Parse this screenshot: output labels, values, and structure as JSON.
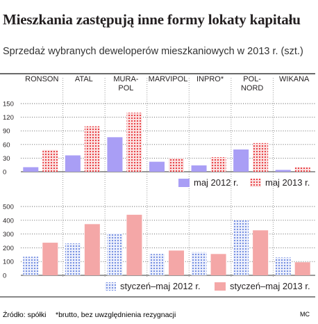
{
  "title": "Mieszkania zastępują inne formy lokaty kapitału",
  "subtitle": "Sprzedaż wybranych deweloperów mieszkaniowych w 2013 r. (szt.)",
  "source": "Źródło: spółki",
  "note": "*brutto, bez uwzględnienia rezygnacji",
  "credit": "MC",
  "colors": {
    "maj_2012": "#a99ef5",
    "maj_2013": "#e8383e",
    "sty_2012": "#8fa3e8",
    "sty_2013": "#f4a7a7",
    "frame": "#111111",
    "gridline": "#555555"
  },
  "chart_data": [
    {
      "type": "bar",
      "categories": [
        "RONSON",
        "ATAL",
        "MURA-POL",
        "MARVIPOL",
        "INPRO*",
        "POL-NORD",
        "WIKANA"
      ],
      "series": [
        {
          "name": "maj 2012 r.",
          "values": [
            10,
            36,
            76,
            22,
            14,
            49,
            4
          ]
        },
        {
          "name": "maj 2013 r.",
          "values": [
            48,
            100,
            130,
            30,
            32,
            63,
            10
          ]
        }
      ],
      "ylim": [
        0,
        150
      ],
      "yticks": [
        0,
        30,
        60,
        90,
        120,
        150
      ],
      "grid": true,
      "legend": "bottom-right"
    },
    {
      "type": "bar",
      "categories": [
        "RONSON",
        "ATAL",
        "MURA-POL",
        "MARVIPOL",
        "INPRO*",
        "POL-NORD",
        "WIKANA"
      ],
      "series": [
        {
          "name": "styczeń–maj 2012 r.",
          "values": [
            135,
            232,
            305,
            155,
            168,
            400,
            130
          ]
        },
        {
          "name": "styczeń–maj 2013 r.",
          "values": [
            237,
            372,
            440,
            180,
            155,
            327,
            95
          ]
        }
      ],
      "ylim": [
        0,
        500
      ],
      "yticks": [
        0,
        100,
        200,
        300,
        400,
        500
      ],
      "grid": true,
      "legend": "bottom-right"
    }
  ]
}
